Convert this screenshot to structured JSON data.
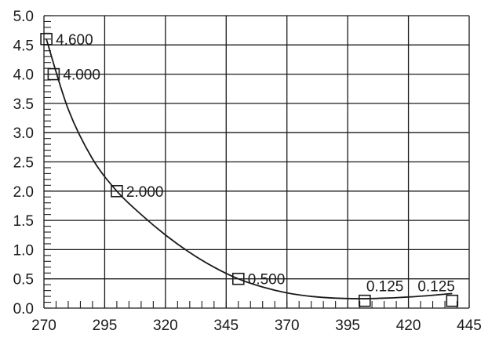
{
  "chart_data": {
    "type": "line",
    "title": "",
    "xlabel": "",
    "ylabel": "",
    "x": [
      271,
      274,
      300,
      350,
      402,
      438
    ],
    "y": [
      4.6,
      4.0,
      2.0,
      0.5,
      0.125,
      0.125
    ],
    "data_labels": [
      "4.600",
      "4.000",
      "2.000",
      "0.500",
      "0.125",
      "0.125"
    ],
    "xlim": [
      270,
      445
    ],
    "ylim": [
      0,
      5
    ],
    "x_ticks": [
      "270",
      "295",
      "320",
      "345",
      "370",
      "395",
      "420",
      "445"
    ],
    "y_ticks": [
      "0.0",
      "0.5",
      "1.0",
      "1.5",
      "2.0",
      "2.5",
      "3.0",
      "3.5",
      "4.0",
      "4.5",
      "5.0"
    ],
    "curve_samples": {
      "x": [
        271,
        280,
        290,
        300,
        310,
        320,
        330,
        340,
        350,
        360,
        370,
        380,
        390,
        400,
        410,
        420,
        430,
        438
      ],
      "y": [
        4.6,
        3.4,
        2.55,
        2.0,
        1.6,
        1.25,
        0.95,
        0.7,
        0.5,
        0.36,
        0.26,
        0.2,
        0.17,
        0.16,
        0.17,
        0.19,
        0.22,
        0.25
      ]
    },
    "marker": "square",
    "grid": true,
    "legend": "none",
    "colors": {
      "line": "#1a1a1a",
      "grid": "#1a1a1a",
      "background": "#ffffff"
    }
  }
}
